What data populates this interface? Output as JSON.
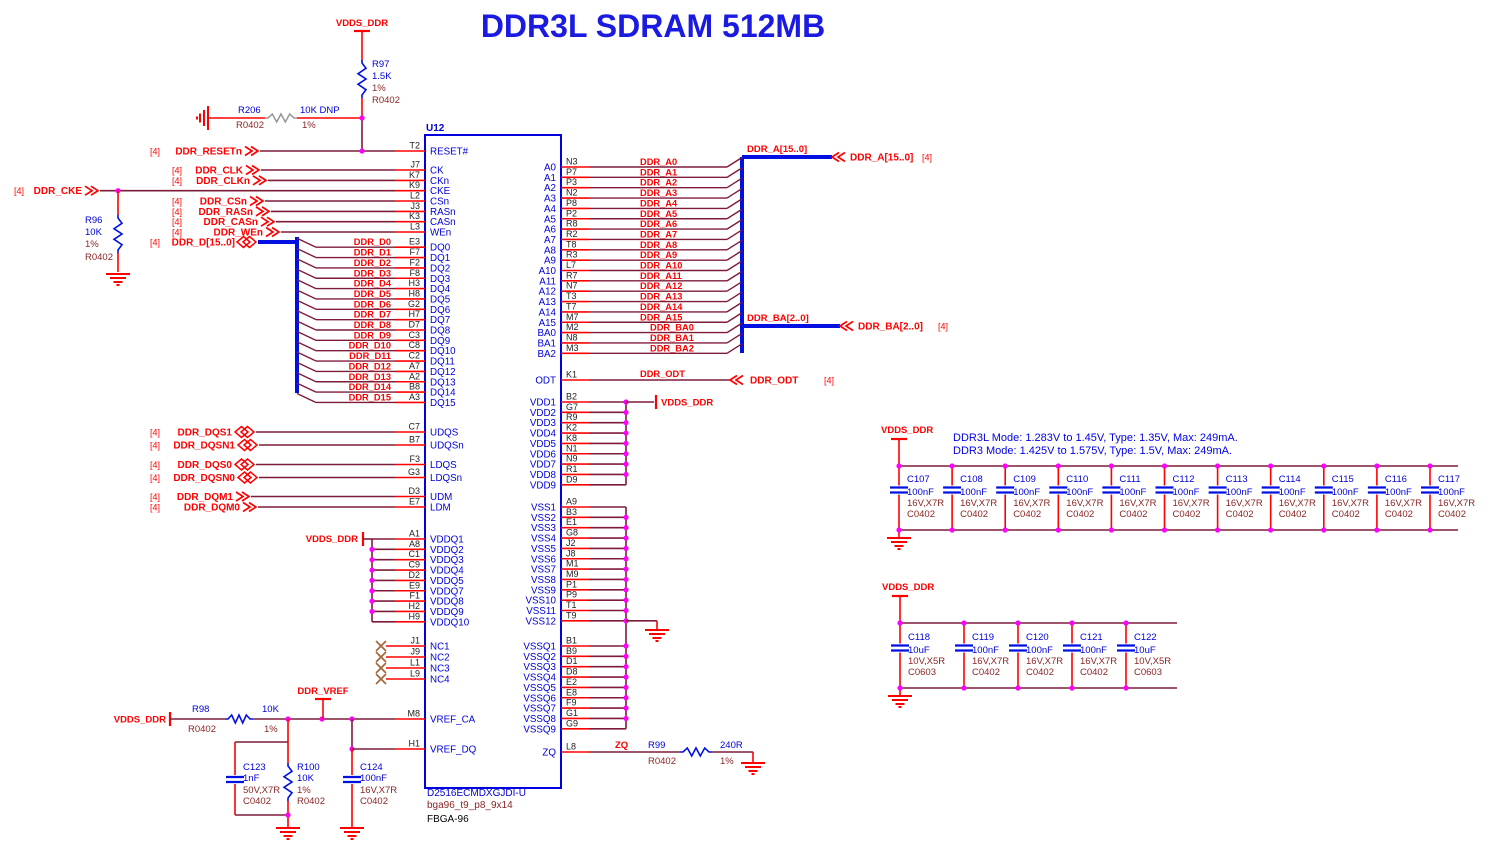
{
  "title": "DDR3L SDRAM 512MB",
  "colors": {
    "wire": "#7e1b38",
    "bus": "#0010e0",
    "pin": "#ff0000",
    "net": "#ff0000",
    "pin_name": "#0000d8",
    "pin_num": "#222222",
    "refdes": "#0000d8",
    "attr": "#8b2525",
    "symbol": "#ff0000",
    "junction": "#ff00ff",
    "resistor": "#0010e0",
    "dnp_resistor": "#9a9a9a",
    "note": "#0000e8",
    "title": "#1a1ae0",
    "nc": "#a5683c",
    "ic_border": "#0000e0",
    "package_text": "#000000"
  },
  "ic": {
    "refdes": "U12",
    "part_number": "D2516ECMDXGJDI-U",
    "footprint": "bga96_t9_p8_9x14",
    "package": "FBGA-96"
  },
  "power_net": "VDDS_DDR",
  "vref_net": "DDR_VREF",
  "reset": {
    "tag": "[4]",
    "port": "DDR_RESETn",
    "num": "T2",
    "name": "RESET#"
  },
  "r97": {
    "refdes": "R97",
    "value": "1.5K",
    "tol": "1%",
    "fp": "R0402"
  },
  "r206": {
    "refdes": "R206",
    "fp": "R0402",
    "value": "10K DNP",
    "tol": "1%"
  },
  "cke": {
    "tag": "[4]",
    "port": "DDR_CKE"
  },
  "r96": {
    "refdes": "R96",
    "value": "10K",
    "tol": "1%",
    "fp": "R0402"
  },
  "ctrl": [
    {
      "tag": "[4]",
      "port": "DDR_CLK",
      "num": "J7",
      "name": "CK"
    },
    {
      "tag": "[4]",
      "port": "DDR_CLKn",
      "num": "K7",
      "name": "CKn"
    },
    {
      "cke": true,
      "num": "K9",
      "name": "CKE"
    },
    {
      "tag": "[4]",
      "port": "DDR_CSn",
      "num": "L2",
      "name": "CSn"
    },
    {
      "tag": "[4]",
      "port": "DDR_RASn",
      "num": "J3",
      "name": "RASn"
    },
    {
      "tag": "[4]",
      "port": "DDR_CASn",
      "num": "K3",
      "name": "CASn"
    },
    {
      "tag": "[4]",
      "port": "DDR_WEn",
      "num": "L3",
      "name": "WEn"
    }
  ],
  "dbus": {
    "tag": "[4]",
    "port": "DDR_D[15..0]"
  },
  "dq": [
    {
      "net": "DDR_D0",
      "num": "E3",
      "name": "DQ0"
    },
    {
      "net": "DDR_D1",
      "num": "F7",
      "name": "DQ1"
    },
    {
      "net": "DDR_D2",
      "num": "F2",
      "name": "DQ2"
    },
    {
      "net": "DDR_D3",
      "num": "F8",
      "name": "DQ3"
    },
    {
      "net": "DDR_D4",
      "num": "H3",
      "name": "DQ4"
    },
    {
      "net": "DDR_D5",
      "num": "H8",
      "name": "DQ5"
    },
    {
      "net": "DDR_D6",
      "num": "G2",
      "name": "DQ6"
    },
    {
      "net": "DDR_D7",
      "num": "H7",
      "name": "DQ7"
    },
    {
      "net": "DDR_D8",
      "num": "D7",
      "name": "DQ8"
    },
    {
      "net": "DDR_D9",
      "num": "C3",
      "name": "DQ9"
    },
    {
      "net": "DDR_D10",
      "num": "C8",
      "name": "DQ10"
    },
    {
      "net": "DDR_D11",
      "num": "C2",
      "name": "DQ11"
    },
    {
      "net": "DDR_D12",
      "num": "A7",
      "name": "DQ12"
    },
    {
      "net": "DDR_D13",
      "num": "A2",
      "name": "DQ13"
    },
    {
      "net": "DDR_D14",
      "num": "B8",
      "name": "DQ14"
    },
    {
      "net": "DDR_D15",
      "num": "A3",
      "name": "DQ15"
    }
  ],
  "dqs": [
    {
      "tag": "[4]",
      "port": "DDR_DQS1",
      "num": "C7",
      "name": "UDQS"
    },
    {
      "tag": "[4]",
      "port": "DDR_DQSN1",
      "num": "B7",
      "name": "UDQSn"
    },
    {
      "tag": "[4]",
      "port": "DDR_DQS0",
      "num": "F3",
      "name": "LDQS"
    },
    {
      "tag": "[4]",
      "port": "DDR_DQSN0",
      "num": "G3",
      "name": "LDQSn"
    }
  ],
  "dqm": [
    {
      "tag": "[4]",
      "port": "DDR_DQM1",
      "num": "D3",
      "name": "UDM"
    },
    {
      "tag": "[4]",
      "port": "DDR_DQM0",
      "num": "E7",
      "name": "LDM"
    }
  ],
  "vddq": [
    {
      "num": "A1",
      "name": "VDDQ1"
    },
    {
      "num": "A8",
      "name": "VDDQ2"
    },
    {
      "num": "C1",
      "name": "VDDQ3"
    },
    {
      "num": "C9",
      "name": "VDDQ4"
    },
    {
      "num": "D2",
      "name": "VDDQ5"
    },
    {
      "num": "E9",
      "name": "VDDQ7"
    },
    {
      "num": "F1",
      "name": "VDDQ8"
    },
    {
      "num": "H2",
      "name": "VDDQ9"
    },
    {
      "num": "H9",
      "name": "VDDQ10"
    }
  ],
  "nc": [
    {
      "num": "J1",
      "name": "NC1"
    },
    {
      "num": "J9",
      "name": "NC2"
    },
    {
      "num": "L1",
      "name": "NC3"
    },
    {
      "num": "L9",
      "name": "NC4"
    }
  ],
  "vref_pins": [
    {
      "num": "M8",
      "name": "VREF_CA"
    },
    {
      "num": "H1",
      "name": "VREF_DQ"
    }
  ],
  "addr": {
    "bus_label": "DDR_A[15..0]",
    "port": "DDR_A[15..0]",
    "tag": "[4]",
    "pins": [
      {
        "net": "DDR_A0",
        "num": "N3",
        "name": "A0"
      },
      {
        "net": "DDR_A1",
        "num": "P7",
        "name": "A1"
      },
      {
        "net": "DDR_A2",
        "num": "P3",
        "name": "A2"
      },
      {
        "net": "DDR_A3",
        "num": "N2",
        "name": "A3"
      },
      {
        "net": "DDR_A4",
        "num": "P8",
        "name": "A4"
      },
      {
        "net": "DDR_A5",
        "num": "P2",
        "name": "A5"
      },
      {
        "net": "DDR_A6",
        "num": "R8",
        "name": "A6"
      },
      {
        "net": "DDR_A7",
        "num": "R2",
        "name": "A7"
      },
      {
        "net": "DDR_A8",
        "num": "T8",
        "name": "A8"
      },
      {
        "net": "DDR_A9",
        "num": "R3",
        "name": "A9"
      },
      {
        "net": "DDR_A10",
        "num": "L7",
        "name": "A10"
      },
      {
        "net": "DDR_A11",
        "num": "R7",
        "name": "A11"
      },
      {
        "net": "DDR_A12",
        "num": "N7",
        "name": "A12"
      },
      {
        "net": "DDR_A13",
        "num": "T3",
        "name": "A13"
      },
      {
        "net": "DDR_A14",
        "num": "T7",
        "name": "A14"
      },
      {
        "net": "DDR_A15",
        "num": "M7",
        "name": "A15"
      }
    ]
  },
  "ba": {
    "bus_label": "DDR_BA[2..0]",
    "port": "DDR_BA[2..0]",
    "tag": "[4]",
    "pins": [
      {
        "net": "DDR_BA0",
        "num": "M2",
        "name": "BA0"
      },
      {
        "net": "DDR_BA1",
        "num": "N8",
        "name": "BA1"
      },
      {
        "net": "DDR_BA2",
        "num": "M3",
        "name": "BA2"
      }
    ]
  },
  "odt": {
    "net": "DDR_ODT",
    "num": "K1",
    "name": "ODT",
    "port": "DDR_ODT",
    "tag": "[4]"
  },
  "vdd": [
    {
      "num": "B2",
      "name": "VDD1"
    },
    {
      "num": "G7",
      "name": "VDD2"
    },
    {
      "num": "R9",
      "name": "VDD3"
    },
    {
      "num": "K2",
      "name": "VDD4"
    },
    {
      "num": "K8",
      "name": "VDD5"
    },
    {
      "num": "N1",
      "name": "VDD6"
    },
    {
      "num": "N9",
      "name": "VDD7"
    },
    {
      "num": "R1",
      "name": "VDD8"
    },
    {
      "num": "D9",
      "name": "VDD9"
    }
  ],
  "vss": [
    {
      "num": "A9",
      "name": "VSS1"
    },
    {
      "num": "B3",
      "name": "VSS2"
    },
    {
      "num": "E1",
      "name": "VSS3"
    },
    {
      "num": "G8",
      "name": "VSS4"
    },
    {
      "num": "J2",
      "name": "VSS5"
    },
    {
      "num": "J8",
      "name": "VSS6"
    },
    {
      "num": "M1",
      "name": "VSS7"
    },
    {
      "num": "M9",
      "name": "VSS8"
    },
    {
      "num": "P1",
      "name": "VSS9"
    },
    {
      "num": "P9",
      "name": "VSS10"
    },
    {
      "num": "T1",
      "name": "VSS11"
    },
    {
      "num": "T9",
      "name": "VSS12"
    }
  ],
  "vssq": [
    {
      "num": "B1",
      "name": "VSSQ1"
    },
    {
      "num": "B9",
      "name": "VSSQ2"
    },
    {
      "num": "D1",
      "name": "VSSQ3"
    },
    {
      "num": "D8",
      "name": "VSSQ4"
    },
    {
      "num": "E2",
      "name": "VSSQ5"
    },
    {
      "num": "E8",
      "name": "VSSQ6"
    },
    {
      "num": "F9",
      "name": "VSSQ7"
    },
    {
      "num": "G1",
      "name": "VSSQ8"
    },
    {
      "num": "G9",
      "name": "VSSQ9"
    }
  ],
  "zq": {
    "net": "ZQ",
    "num": "L8",
    "name": "ZQ",
    "res": {
      "refdes": "R99",
      "fp": "R0402",
      "value": "240R",
      "tol": "1%"
    }
  },
  "vref_circuit": {
    "r98": {
      "refdes": "R98",
      "fp": "R0402",
      "value": "10K",
      "tol": "1%"
    },
    "c123": {
      "refdes": "C123",
      "value": "1nF",
      "rating": "50V,X7R",
      "fp": "C0402"
    },
    "r100": {
      "refdes": "R100",
      "value": "10K",
      "tol": "1%",
      "fp": "R0402"
    },
    "c124": {
      "refdes": "C124",
      "value": "100nF",
      "rating": "16V,X7R",
      "fp": "C0402"
    }
  },
  "notes": [
    "DDR3L Mode: 1.283V to 1.45V, Type: 1.35V, Max: 249mA.",
    "DDR3 Mode: 1.425V to 1.575V, Type: 1.5V, Max: 249mA."
  ],
  "bank1": [
    {
      "refdes": "C107",
      "value": "100nF",
      "rating": "16V,X7R",
      "fp": "C0402"
    },
    {
      "refdes": "C108",
      "value": "100nF",
      "rating": "16V,X7R",
      "fp": "C0402"
    },
    {
      "refdes": "C109",
      "value": "100nF",
      "rating": "16V,X7R",
      "fp": "C0402"
    },
    {
      "refdes": "C110",
      "value": "100nF",
      "rating": "16V,X7R",
      "fp": "C0402"
    },
    {
      "refdes": "C111",
      "value": "100nF",
      "rating": "16V,X7R",
      "fp": "C0402"
    },
    {
      "refdes": "C112",
      "value": "100nF",
      "rating": "16V,X7R",
      "fp": "C0402"
    },
    {
      "refdes": "C113",
      "value": "100nF",
      "rating": "16V,X7R",
      "fp": "C0402"
    },
    {
      "refdes": "C114",
      "value": "100nF",
      "rating": "16V,X7R",
      "fp": "C0402"
    },
    {
      "refdes": "C115",
      "value": "100nF",
      "rating": "16V,X7R",
      "fp": "C0402"
    },
    {
      "refdes": "C116",
      "value": "100nF",
      "rating": "16V,X7R",
      "fp": "C0402"
    },
    {
      "refdes": "C117",
      "value": "100nF",
      "rating": "16V,X7R",
      "fp": "C0402"
    }
  ],
  "bank2": [
    {
      "refdes": "C118",
      "value": "10uF",
      "rating": "10V,X5R",
      "fp": "C0603"
    },
    {
      "refdes": "C119",
      "value": "100nF",
      "rating": "16V,X7R",
      "fp": "C0402"
    },
    {
      "refdes": "C120",
      "value": "100nF",
      "rating": "16V,X7R",
      "fp": "C0402"
    },
    {
      "refdes": "C121",
      "value": "100nF",
      "rating": "16V,X7R",
      "fp": "C0402"
    },
    {
      "refdes": "C122",
      "value": "10uF",
      "rating": "10V,X5R",
      "fp": "C0603"
    }
  ]
}
